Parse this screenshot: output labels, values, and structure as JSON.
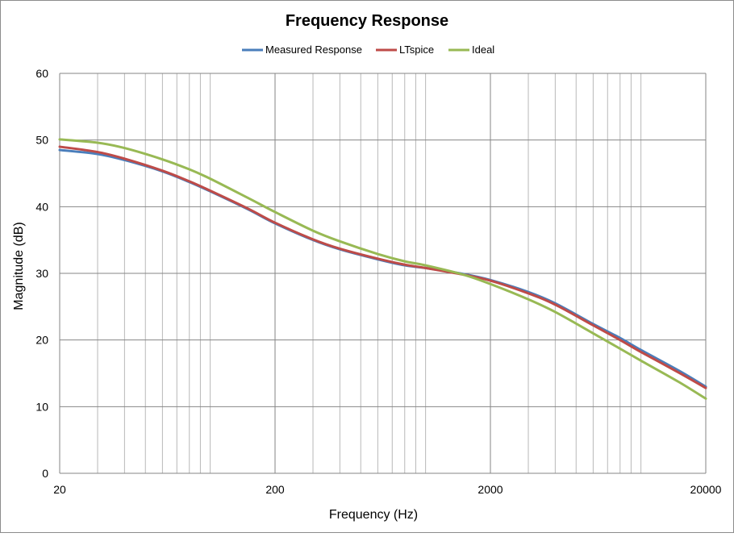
{
  "chart_data": {
    "type": "line",
    "title": "Frequency Response",
    "xlabel": "Frequency (Hz)",
    "ylabel": "Magnitude (dB)",
    "x_scale": "log",
    "xlim": [
      20,
      20000
    ],
    "ylim": [
      0,
      60
    ],
    "x_ticks": [
      20,
      200,
      2000,
      20000
    ],
    "y_ticks": [
      0,
      10,
      20,
      30,
      40,
      50,
      60
    ],
    "grid": true,
    "legend_position": "top",
    "series": [
      {
        "name": "Measured Response",
        "color": "#4a7ebb",
        "x": [
          20,
          30,
          40,
          60,
          80,
          100,
          150,
          200,
          300,
          400,
          600,
          800,
          1000,
          1500,
          2000,
          3000,
          4000,
          6000,
          8000,
          10000,
          15000,
          20000
        ],
        "y": [
          48.5,
          47.9,
          47.0,
          45.3,
          43.7,
          42.3,
          39.6,
          37.5,
          35.0,
          33.6,
          32.1,
          31.2,
          30.8,
          29.9,
          29.0,
          27.2,
          25.5,
          22.4,
          20.3,
          18.5,
          15.4,
          13.0
        ]
      },
      {
        "name": "LTspice",
        "color": "#be4b48",
        "x": [
          20,
          30,
          40,
          60,
          80,
          100,
          150,
          200,
          300,
          400,
          600,
          800,
          1000,
          1500,
          2000,
          3000,
          4000,
          6000,
          8000,
          10000,
          15000,
          20000
        ],
        "y": [
          49.0,
          48.2,
          47.2,
          45.4,
          43.8,
          42.4,
          39.7,
          37.6,
          35.1,
          33.7,
          32.2,
          31.3,
          30.8,
          29.8,
          28.9,
          27.0,
          25.3,
          22.2,
          20.0,
          18.2,
          15.1,
          12.8
        ]
      },
      {
        "name": "Ideal",
        "color": "#98b954",
        "x": [
          20,
          30,
          40,
          60,
          80,
          100,
          150,
          200,
          300,
          400,
          600,
          800,
          1000,
          1500,
          2000,
          3000,
          4000,
          6000,
          8000,
          10000,
          15000,
          20000
        ],
        "y": [
          50.1,
          49.6,
          48.8,
          47.1,
          45.6,
          44.2,
          41.3,
          39.2,
          36.4,
          34.8,
          32.9,
          31.8,
          31.2,
          29.8,
          28.4,
          26.1,
          24.2,
          21.0,
          18.7,
          16.9,
          13.7,
          11.2
        ]
      }
    ]
  }
}
